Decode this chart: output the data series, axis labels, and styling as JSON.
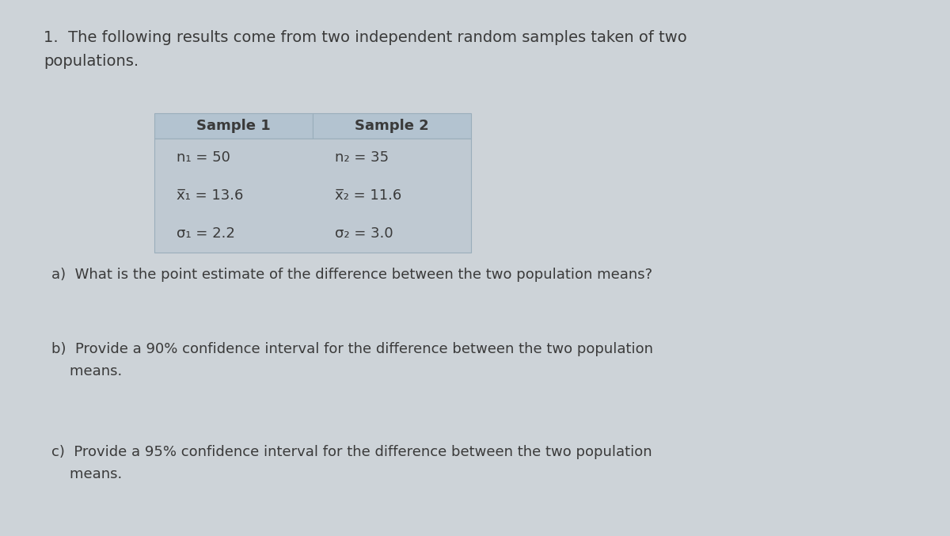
{
  "background_color": "#cdd3d8",
  "text_color": "#3a3a3a",
  "title_line1": "1.  The following results come from two independent random samples taken of two",
  "title_line2": "populations.",
  "header1": "Sample 1",
  "header2": "Sample 2",
  "row1_col1": "n₁ = 50",
  "row1_col2": "n₂ = 35",
  "row2_col1": "x̅₁ = 13.6",
  "row2_col2": "x̅₂ = 11.6",
  "row3_col1": "σ₁ = 2.2",
  "row3_col2": "σ₂ = 3.0",
  "question_a": "a)  What is the point estimate of the difference between the two population means?",
  "question_b_line1": "b)  Provide a 90% confidence interval for the difference between the two population",
  "question_b_line2": "    means.",
  "question_c_line1": "c)  Provide a 95% confidence interval for the difference between the two population",
  "question_c_line2": "    means.",
  "header_bg": "#b3c3d0",
  "table_bg": "#bfc9d2",
  "font_size_title": 14,
  "font_size_header": 13,
  "font_size_table": 13,
  "font_size_question": 13
}
